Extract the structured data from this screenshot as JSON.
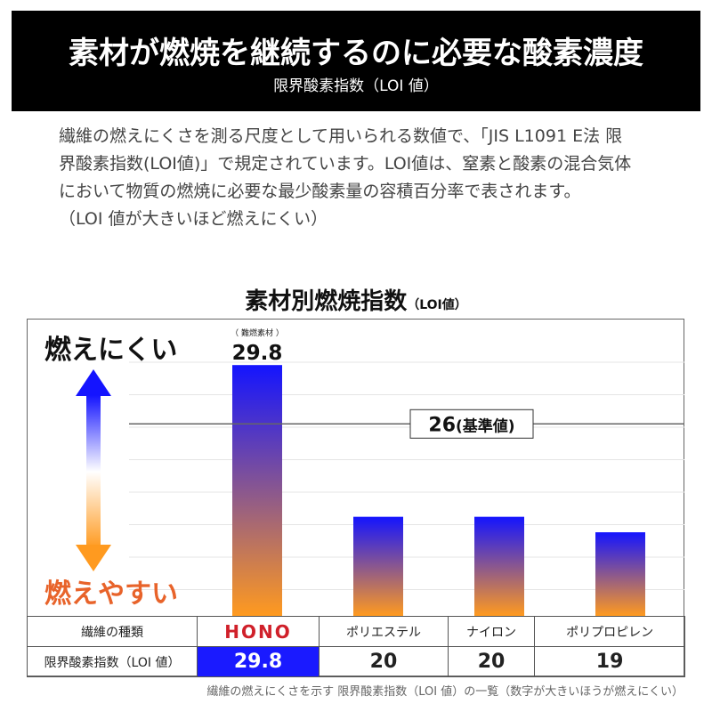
{
  "header": {
    "title": "素材が燃焼を継続するのに必要な酸素濃度",
    "subtitle": "限界酸素指数（LOI 値）"
  },
  "description": [
    "繊維の燃えにくさを測る尺度として用いられる数値で、「JIS L1091 E法 限",
    "界酸素指数(LOI値)」で規定されています。LOI値は、窒素と酸素の混合気体",
    "において物質の燃焼に必要な最少酸素量の容積百分率で表されます。",
    "（LOI 値が大きいほど燃えにくい）"
  ],
  "chart_data": {
    "type": "bar",
    "title": "素材別燃焼指数",
    "title_suffix": "（LOI値）",
    "categories": [
      "HONO",
      "ポリエステル",
      "ナイロン",
      "ポリプロピレン"
    ],
    "values": [
      29.8,
      20,
      20,
      19
    ],
    "value_label": "29.8",
    "value_annotation": "（ 難燃素材 ）",
    "reference_line": {
      "value": 26,
      "label": "26",
      "label_suffix": "(基準値)"
    },
    "ylim": [
      13.6,
      32.8
    ],
    "grid": true,
    "axis_hint_top": "燃えにくい",
    "axis_hint_bottom": "燃えやすい",
    "colors": {
      "top": "#1414ff",
      "bottom": "#ff9a1f",
      "hint_bottom": "#e8632a"
    }
  },
  "table": {
    "row_headers": [
      "繊維の種類",
      "限界酸素指数（LOI 値）"
    ],
    "names": [
      "HONO",
      "ポリエステル",
      "ナイロン",
      "ポリプロピレン"
    ],
    "values": [
      "29.8",
      "20",
      "20",
      "19"
    ]
  },
  "caption": "繊維の燃えにくさを示す 限界酸素指数（LOI 値）の一覧（数字が大きいほうが燃えにくい）"
}
